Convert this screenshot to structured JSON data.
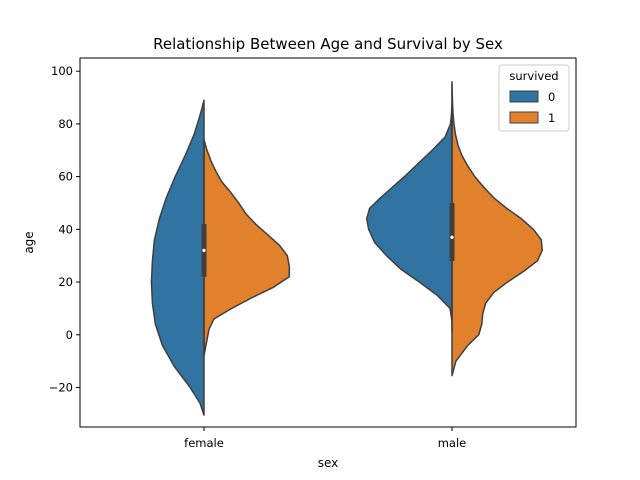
{
  "chart_data": {
    "type": "violin",
    "title": "Relationship Between Age and Survival by Sex",
    "xlabel": "sex",
    "ylabel": "age",
    "categories": [
      "female",
      "male"
    ],
    "ylim": [
      -35,
      105
    ],
    "yticks": [
      -20,
      0,
      20,
      40,
      60,
      80,
      100
    ],
    "grid": false,
    "split": true,
    "legend": {
      "title": "survived",
      "placement": "top-right",
      "entries": [
        {
          "label": "0",
          "color": "#3274a1"
        },
        {
          "label": "1",
          "color": "#e1812c"
        }
      ]
    },
    "series": [
      {
        "name": "0",
        "color": "#3274a1",
        "side": "left",
        "violins": [
          {
            "category": "female",
            "ymin": -30.5,
            "ymax": 89,
            "profile": [
              [
                -30.5,
                0.0
              ],
              [
                -26,
                0.04
              ],
              [
                -20,
                0.14
              ],
              [
                -12,
                0.3
              ],
              [
                -4,
                0.42
              ],
              [
                4,
                0.49
              ],
              [
                12,
                0.52
              ],
              [
                20,
                0.53
              ],
              [
                28,
                0.52
              ],
              [
                36,
                0.5
              ],
              [
                44,
                0.45
              ],
              [
                52,
                0.38
              ],
              [
                60,
                0.29
              ],
              [
                68,
                0.19
              ],
              [
                76,
                0.1
              ],
              [
                82,
                0.05
              ],
              [
                86,
                0.02
              ],
              [
                89,
                0.0
              ]
            ]
          },
          {
            "category": "male",
            "ymin": 5,
            "ymax": 96,
            "profile": [
              [
                5,
                0.0
              ],
              [
                10,
                0.02
              ],
              [
                15,
                0.15
              ],
              [
                20,
                0.33
              ],
              [
                25,
                0.52
              ],
              [
                30,
                0.66
              ],
              [
                35,
                0.78
              ],
              [
                40,
                0.84
              ],
              [
                44,
                0.86
              ],
              [
                48,
                0.83
              ],
              [
                52,
                0.72
              ],
              [
                56,
                0.6
              ],
              [
                60,
                0.48
              ],
              [
                65,
                0.34
              ],
              [
                70,
                0.2
              ],
              [
                75,
                0.07
              ],
              [
                80,
                0.015
              ],
              [
                84,
                0.005
              ],
              [
                88,
                0.0
              ],
              [
                93,
                0.0
              ],
              [
                96,
                0.0
              ]
            ]
          }
        ]
      },
      {
        "name": "1",
        "color": "#e1812c",
        "side": "right",
        "violins": [
          {
            "category": "female",
            "ymin": -8,
            "ymax": 74,
            "profile": [
              [
                -8,
                0.0
              ],
              [
                -2,
                0.03
              ],
              [
                2,
                0.05
              ],
              [
                6,
                0.1
              ],
              [
                10,
                0.28
              ],
              [
                14,
                0.48
              ],
              [
                18,
                0.7
              ],
              [
                22,
                0.86
              ],
              [
                26,
                0.86
              ],
              [
                30,
                0.84
              ],
              [
                34,
                0.76
              ],
              [
                38,
                0.64
              ],
              [
                42,
                0.52
              ],
              [
                46,
                0.42
              ],
              [
                50,
                0.35
              ],
              [
                54,
                0.27
              ],
              [
                58,
                0.18
              ],
              [
                62,
                0.12
              ],
              [
                66,
                0.07
              ],
              [
                70,
                0.03
              ],
              [
                74,
                0.0
              ]
            ]
          },
          {
            "category": "male",
            "ymin": -15.5,
            "ymax": 95,
            "profile": [
              [
                -15.5,
                0.0
              ],
              [
                -10,
                0.04
              ],
              [
                -4,
                0.16
              ],
              [
                0,
                0.27
              ],
              [
                4,
                0.3
              ],
              [
                8,
                0.31
              ],
              [
                12,
                0.34
              ],
              [
                16,
                0.42
              ],
              [
                20,
                0.56
              ],
              [
                24,
                0.72
              ],
              [
                28,
                0.86
              ],
              [
                32,
                0.91
              ],
              [
                36,
                0.9
              ],
              [
                40,
                0.82
              ],
              [
                44,
                0.7
              ],
              [
                48,
                0.55
              ],
              [
                52,
                0.42
              ],
              [
                56,
                0.32
              ],
              [
                60,
                0.23
              ],
              [
                64,
                0.16
              ],
              [
                68,
                0.1
              ],
              [
                72,
                0.06
              ],
              [
                76,
                0.035
              ],
              [
                80,
                0.02
              ],
              [
                84,
                0.01
              ],
              [
                88,
                0.005
              ],
              [
                92,
                0.002
              ],
              [
                95,
                0.0
              ]
            ]
          }
        ]
      }
    ],
    "boxes": [
      {
        "category": "female",
        "whisker_low": -7,
        "q1": 22,
        "median": 32,
        "q3": 42,
        "whisker_high": 73
      },
      {
        "category": "male",
        "whisker_low": 1,
        "q1": 28,
        "median": 37,
        "q3": 50,
        "whisker_high": 83
      }
    ]
  }
}
